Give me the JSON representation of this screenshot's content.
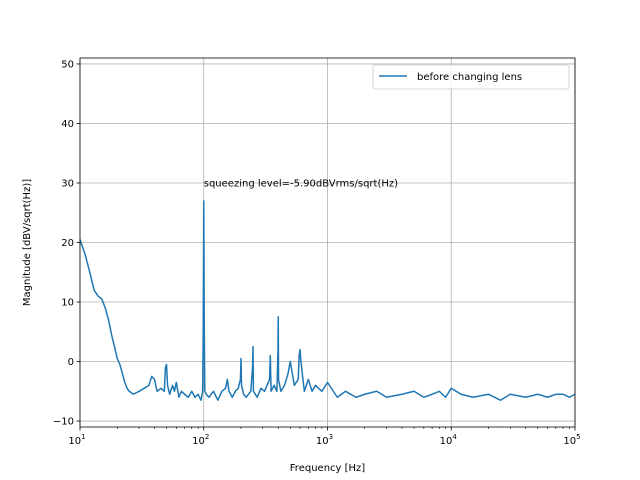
{
  "chart_data": {
    "type": "line",
    "xscale": "log",
    "xlabel": "Frequency [Hz]",
    "ylabel": "Magnitude [dBV/sqrt(Hz)]",
    "xlim": [
      10,
      100000
    ],
    "ylim": [
      -11,
      51
    ],
    "x_ticks": [
      {
        "value": 10,
        "base": "10",
        "exp": "1"
      },
      {
        "value": 100,
        "base": "10",
        "exp": "2"
      },
      {
        "value": 1000,
        "base": "10",
        "exp": "3"
      },
      {
        "value": 10000,
        "base": "10",
        "exp": "4"
      },
      {
        "value": 100000,
        "base": "10",
        "exp": "5"
      }
    ],
    "y_ticks": [
      -10,
      0,
      10,
      20,
      30,
      40,
      50
    ],
    "grid": true,
    "legend": {
      "position": "top-right",
      "entries": [
        "before changing lens"
      ]
    },
    "annotation": {
      "text": "squeezing level=-5.90dBVrms/sqrt(Hz)",
      "x": 100,
      "y": 30
    },
    "series": [
      {
        "name": "before changing lens",
        "color": "#1f77b4",
        "x": [
          10,
          11,
          12,
          13,
          14,
          15,
          16,
          17,
          18,
          19,
          20,
          21,
          22,
          23,
          24,
          25,
          27,
          30,
          33,
          36,
          38,
          40,
          42,
          45,
          48,
          49,
          50,
          51,
          53,
          56,
          58,
          60,
          63,
          66,
          70,
          75,
          80,
          85,
          90,
          95,
          98,
          99,
          100,
          101,
          102,
          105,
          110,
          120,
          130,
          140,
          150,
          155,
          160,
          170,
          180,
          190,
          198,
          200,
          202,
          210,
          220,
          240,
          248,
          250,
          252,
          270,
          290,
          310,
          340,
          345,
          350,
          370,
          390,
          398,
          400,
          402,
          420,
          450,
          480,
          500,
          540,
          580,
          590,
          600,
          610,
          650,
          700,
          750,
          800,
          900,
          1000,
          1200,
          1400,
          1700,
          2000,
          2500,
          3000,
          4000,
          5000,
          6000,
          7000,
          8000,
          9000,
          10000,
          12000,
          15000,
          20000,
          25000,
          30000,
          40000,
          50000,
          60000,
          70000,
          80000,
          90000,
          100000
        ],
        "y": [
          20.5,
          18,
          15,
          12,
          11,
          10.5,
          9,
          7,
          4.5,
          2.5,
          0.5,
          -0.5,
          -2,
          -3.5,
          -4.5,
          -5,
          -5.5,
          -5,
          -4.5,
          -4,
          -2.5,
          -3,
          -5,
          -4.5,
          -5,
          -1,
          -0.5,
          -4,
          -5.5,
          -4,
          -5,
          -3.5,
          -6,
          -5,
          -5.5,
          -6,
          -5,
          -6,
          -5.5,
          -6.5,
          -5,
          5,
          27,
          5,
          -5,
          -5.5,
          -6,
          -5,
          -6.5,
          -5,
          -4.5,
          -3,
          -5,
          -6,
          -5,
          -4.5,
          -3,
          0.5,
          -4,
          -5.5,
          -6,
          -5,
          -1,
          2.5,
          -5,
          -6,
          -4.5,
          -5,
          -3,
          1,
          -5,
          -4,
          -5,
          2,
          7.5,
          -3,
          -5,
          -4,
          -2,
          0,
          -4,
          -3,
          1,
          2,
          0,
          -5,
          -3,
          -5,
          -4,
          -5,
          -3.5,
          -6,
          -5,
          -6,
          -5.5,
          -5,
          -6,
          -5.5,
          -5,
          -6,
          -5.5,
          -5,
          -6,
          -4.5,
          -5.5,
          -6,
          -5.5,
          -6.5,
          -5.5,
          -6,
          -5.5,
          -6,
          -5.5,
          -5.5,
          -6,
          -5.5
        ]
      }
    ]
  }
}
